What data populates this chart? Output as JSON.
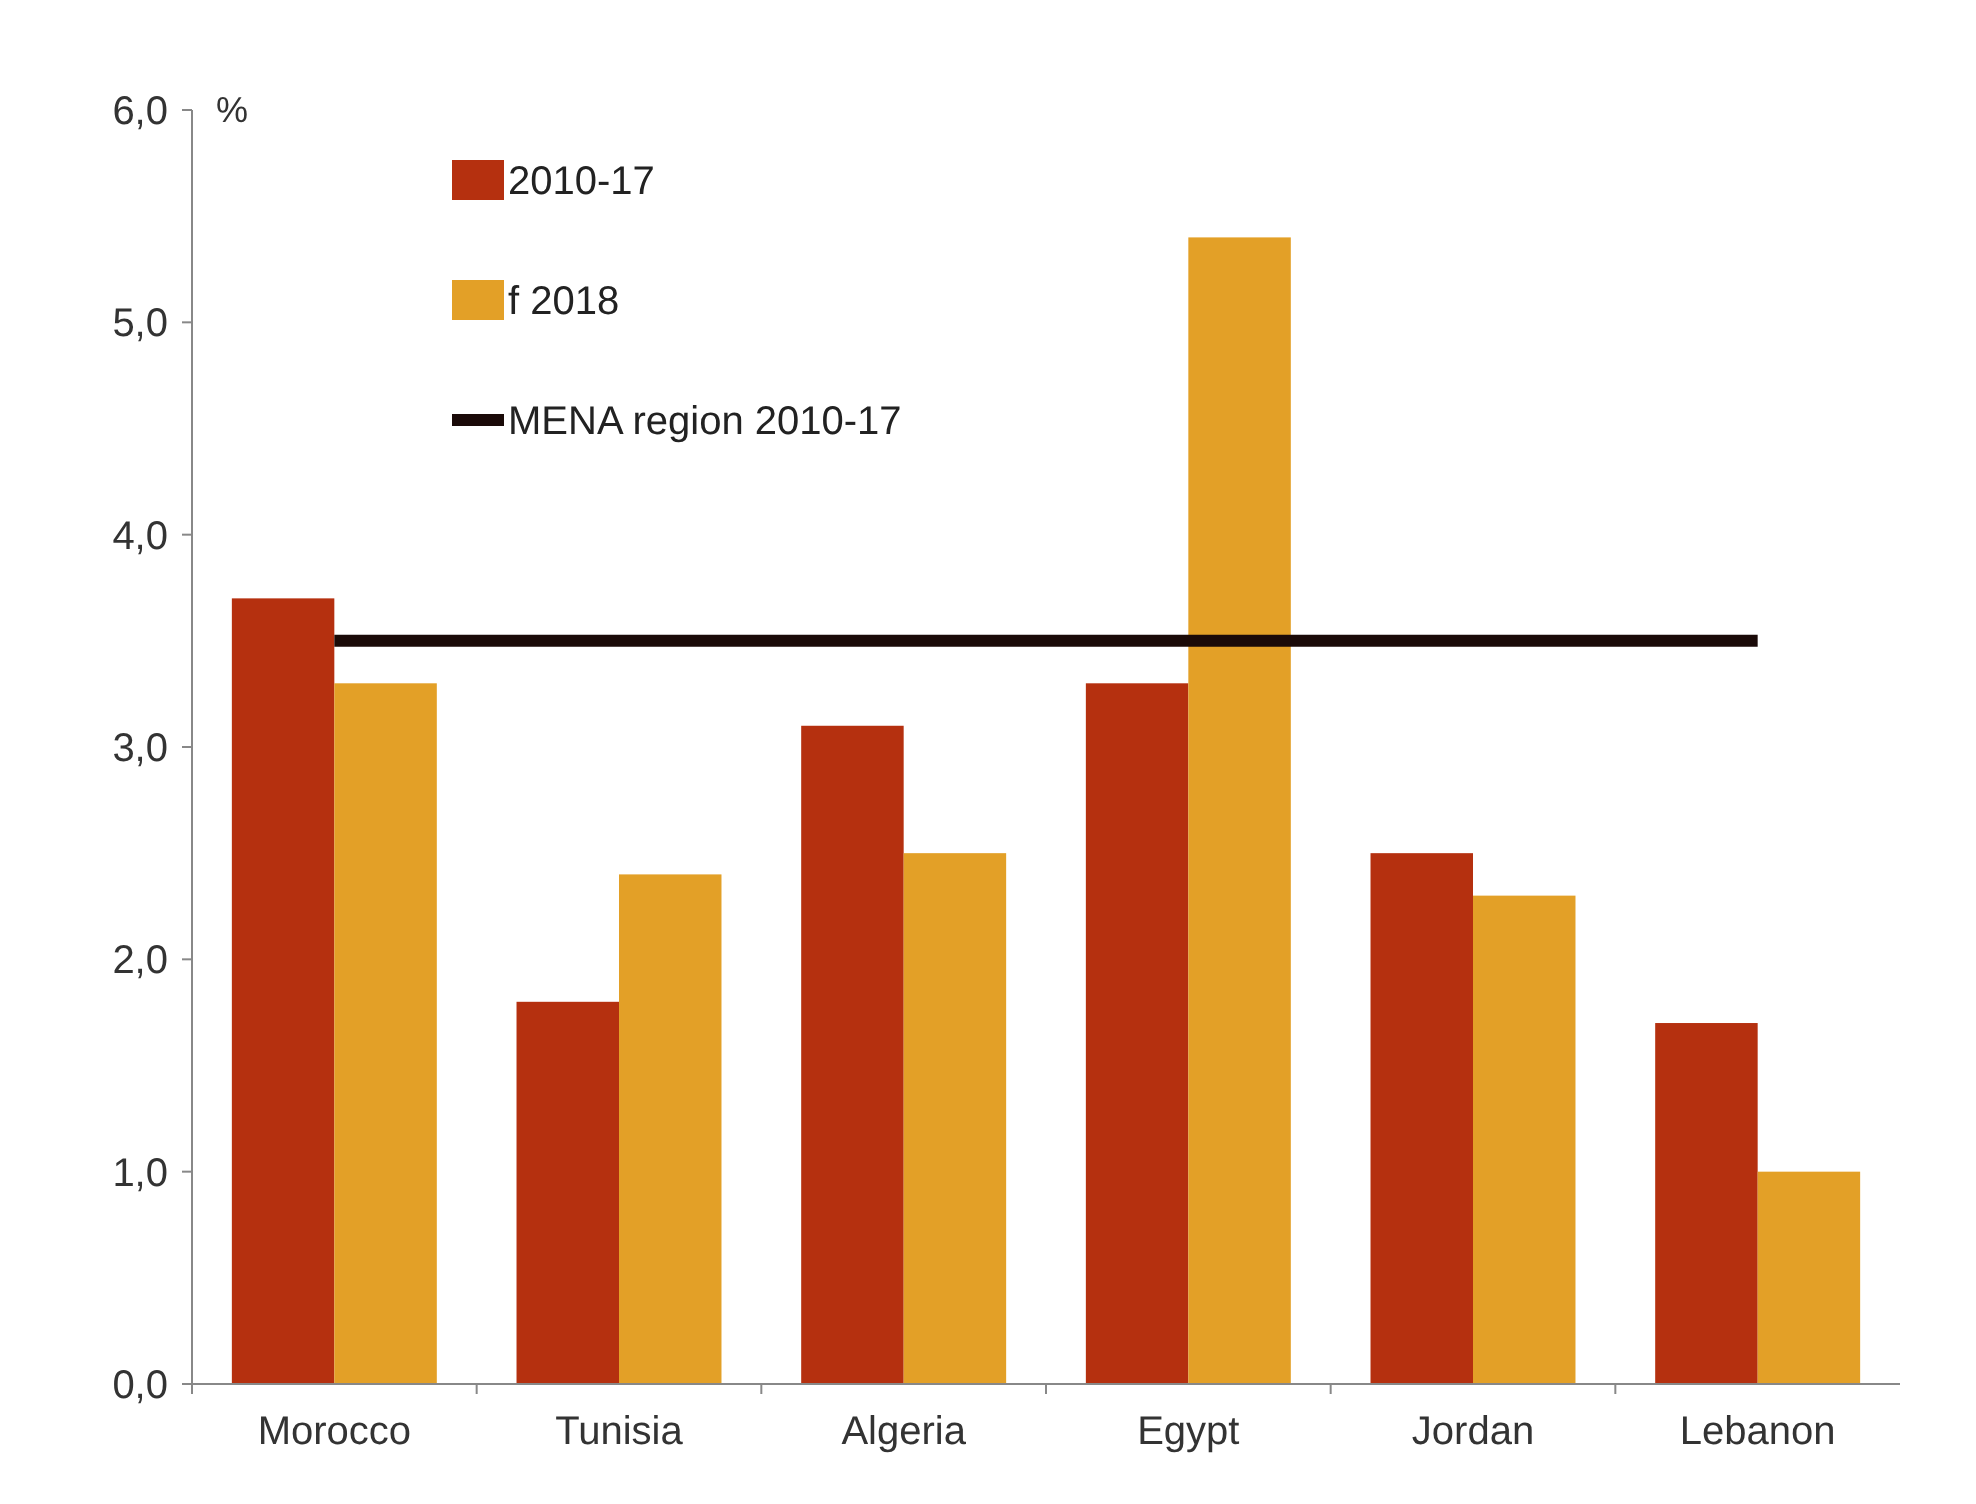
{
  "chart_data": {
    "type": "bar",
    "ylabel": "%",
    "categories": [
      "Morocco",
      "Tunisia",
      "Algeria",
      "Egypt",
      "Jordan",
      "Lebanon"
    ],
    "series": [
      {
        "name": "2010-17",
        "color": "#b5300f",
        "values": [
          3.7,
          1.8,
          3.1,
          3.3,
          2.5,
          1.7
        ]
      },
      {
        "name": "f 2018",
        "color": "#e3a027",
        "values": [
          3.3,
          2.4,
          2.5,
          5.4,
          2.3,
          1.0
        ]
      },
      {
        "name": "MENA region 2010-17",
        "type": "line",
        "color": "#1a0a08",
        "values": [
          3.5,
          3.5,
          3.5,
          3.5,
          3.5,
          3.5
        ]
      }
    ],
    "ylim": [
      0,
      6
    ],
    "yticks": [
      {
        "value": 0,
        "label": "0,0"
      },
      {
        "value": 1,
        "label": "1,0"
      },
      {
        "value": 2,
        "label": "2,0"
      },
      {
        "value": 3,
        "label": "3,0"
      },
      {
        "value": 4,
        "label": "4,0"
      },
      {
        "value": 5,
        "label": "5,0"
      },
      {
        "value": 6,
        "label": "6,0"
      }
    ],
    "legend": "top left",
    "grid": false
  }
}
